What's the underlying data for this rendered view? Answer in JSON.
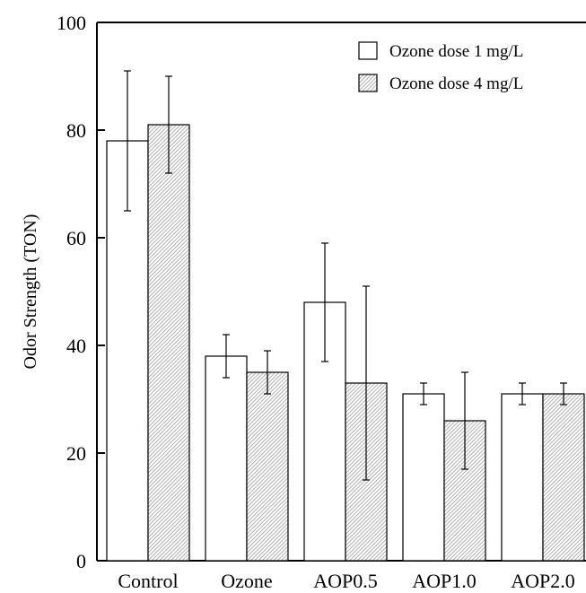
{
  "chart_data": {
    "type": "bar",
    "title": "",
    "xlabel": "",
    "ylabel": "Odor Strength (TON)",
    "ylim": [
      0,
      100
    ],
    "yticks": [
      0,
      20,
      40,
      60,
      80,
      100
    ],
    "categories": [
      "Control",
      "Ozone",
      "AOP0.5",
      "AOP1.0",
      "AOP2.0"
    ],
    "series": [
      {
        "name": "Ozone dose 1 mg/L",
        "values": [
          78,
          38,
          48,
          31,
          31
        ],
        "err_low": [
          65,
          34,
          37,
          29,
          29
        ],
        "err_high": [
          91,
          42,
          59,
          33,
          33
        ],
        "fill": "plain"
      },
      {
        "name": "Ozone dose 4 mg/L",
        "values": [
          81,
          35,
          33,
          26,
          31
        ],
        "err_low": [
          72,
          31,
          15,
          17,
          29
        ],
        "err_high": [
          90,
          39,
          51,
          35,
          33
        ],
        "fill": "hatched"
      }
    ],
    "legend_position": "top-right",
    "grid": false,
    "colors": {
      "axis": "#000000",
      "bar_plain": "#ffffff",
      "bar_hatch_line": "#9a9a9a"
    }
  }
}
